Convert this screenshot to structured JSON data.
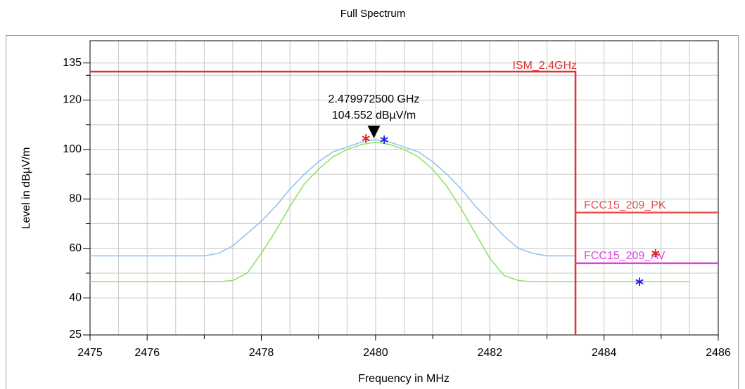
{
  "chart_data": {
    "type": "line",
    "title": "Full Spectrum",
    "xlabel": "Frequency in MHz",
    "ylabel": "Level in dBµV/m",
    "xlim": [
      2475,
      2486
    ],
    "ylim": [
      25,
      144
    ],
    "xticks": [
      2475,
      2476,
      2478,
      2480,
      2482,
      2484,
      2486
    ],
    "xminor": [
      2477,
      2479,
      2481,
      2483,
      2485
    ],
    "yticks": [
      25,
      40,
      60,
      80,
      100,
      120,
      135
    ],
    "yminor": [
      50,
      70,
      90,
      110,
      130
    ],
    "grid": true,
    "x": [
      2475,
      2475.25,
      2475.5,
      2475.75,
      2476,
      2476.25,
      2476.5,
      2476.75,
      2477,
      2477.25,
      2477.5,
      2477.75,
      2478,
      2478.25,
      2478.5,
      2478.75,
      2479,
      2479.25,
      2479.5,
      2479.75,
      2480,
      2480.25,
      2480.5,
      2480.75,
      2481,
      2481.25,
      2481.5,
      2481.75,
      2482,
      2482.25,
      2482.5,
      2482.75,
      2483,
      2483.25,
      2483.5,
      2483.75,
      2484,
      2484.25,
      2484.5,
      2484.75,
      2485,
      2485.25,
      2485.5
    ],
    "series": [
      {
        "color": "#8fc0ee",
        "values": [
          57,
          57,
          57,
          57,
          57,
          57,
          57,
          57,
          57,
          58,
          61,
          66,
          71,
          77,
          84,
          90,
          95,
          99,
          101,
          103,
          104,
          103,
          101,
          99,
          95,
          90,
          84,
          77,
          71,
          65,
          60,
          58,
          57,
          57,
          57,
          null,
          null,
          null,
          null,
          null,
          null,
          null,
          null
        ]
      },
      {
        "color": "#8ee060",
        "values": [
          46.5,
          46.5,
          46.5,
          46.5,
          46.5,
          46.5,
          46.5,
          46.5,
          46.5,
          46.5,
          47,
          50,
          58,
          67,
          77,
          86,
          92,
          97,
          100,
          102,
          103,
          102,
          100,
          97,
          92,
          85,
          76,
          66,
          56,
          49,
          47,
          46.5,
          46.5,
          46.5,
          46.5,
          46.5,
          46.5,
          46.5,
          46.5,
          46.5,
          46.5,
          46.5,
          46.5
        ]
      }
    ],
    "limit_lines": [
      {
        "name": "ISM_2.4GHz",
        "color": "#e03030",
        "x": [
          2475,
          2483.5,
          2483.5
        ],
        "values": [
          131.5,
          131.5,
          25
        ]
      },
      {
        "name": "FCC15_209_PK",
        "color": "#e85050",
        "x": [
          2483.5,
          2486
        ],
        "values": [
          74.5,
          74.5
        ]
      },
      {
        "name": "FCC15_209_AV",
        "color": "#e040e0",
        "x": [
          2483.5,
          2486
        ],
        "values": [
          54,
          54
        ]
      }
    ],
    "marker": {
      "x": 2479.97,
      "value": 104.552,
      "label_freq": "2.479972500 GHz",
      "label_level": "104.552 dBµV/m"
    },
    "points": [
      {
        "x": 2479.83,
        "value": 104.5,
        "color": "#e02020"
      },
      {
        "x": 2480.15,
        "value": 104,
        "color": "#2020e0"
      },
      {
        "x": 2484.9,
        "value": 58,
        "color": "#e02020"
      },
      {
        "x": 2484.62,
        "value": 46.5,
        "color": "#2020e0"
      }
    ]
  }
}
